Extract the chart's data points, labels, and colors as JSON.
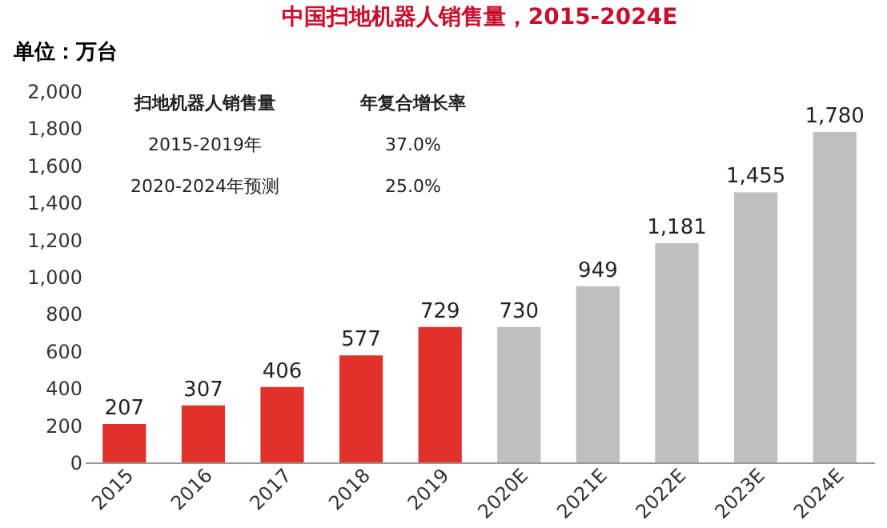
{
  "chart_data": {
    "type": "bar",
    "title": "中国扫地机器人销售量，2015-2024E",
    "ylabel": "单位：万台",
    "categories": [
      "2015",
      "2016",
      "2017",
      "2018",
      "2019",
      "2020E",
      "2021E",
      "2022E",
      "2023E",
      "2024E"
    ],
    "values": [
      207,
      307,
      406,
      577,
      729,
      730,
      949,
      1181,
      1455,
      1780
    ],
    "value_labels": [
      "207",
      "307",
      "406",
      "577",
      "729",
      "730",
      "949",
      "1,181",
      "1,455",
      "1,780"
    ],
    "colors": [
      "#e0312a",
      "#e0312a",
      "#e0312a",
      "#e0312a",
      "#e0312a",
      "#bfbfbf",
      "#bfbfbf",
      "#bfbfbf",
      "#bfbfbf",
      "#bfbfbf"
    ],
    "ylim": [
      0,
      2000
    ],
    "yticks": [
      0,
      200,
      400,
      600,
      800,
      {
        "value": 1000,
        "label": "1,000"
      },
      {
        "value": 1200,
        "label": "1,200"
      },
      {
        "value": 1400,
        "label": "1,400"
      },
      {
        "value": 1600,
        "label": "1,600"
      },
      {
        "value": 1800,
        "label": "1,800"
      },
      {
        "value": 2000,
        "label": "2,000"
      }
    ],
    "grid": false,
    "annotations": [
      "扫地机器人销售量",
      "年复合增长率",
      "2015-2019年",
      "37.0%",
      "2020-2024年预测",
      "25.0%"
    ]
  }
}
